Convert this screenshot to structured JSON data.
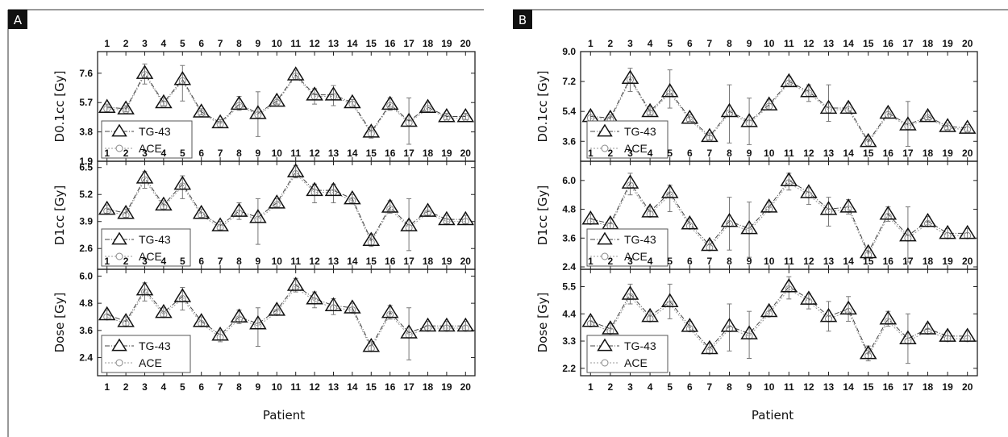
{
  "figure": {
    "panels": [
      {
        "label": "A",
        "xlabel": "Patient"
      },
      {
        "label": "B",
        "xlabel": "Patient"
      }
    ]
  },
  "chart_data": [
    {
      "type": "line",
      "panel": "A",
      "ylabel": "D0.1cc [Gy]",
      "xlabel": "",
      "categories": [
        "1",
        "2",
        "3",
        "4",
        "5",
        "6",
        "7",
        "8",
        "9",
        "10",
        "11",
        "12",
        "13",
        "14",
        "15",
        "16",
        "17",
        "18",
        "19",
        "20"
      ],
      "yticks": [
        1.9,
        3.8,
        5.7,
        7.6
      ],
      "ylim": [
        1.9,
        9.0
      ],
      "legend_position": "bottom-left",
      "series": [
        {
          "name": "TG-43",
          "marker": "triangle",
          "values": [
            5.4,
            5.3,
            7.6,
            5.7,
            7.2,
            5.1,
            4.4,
            5.6,
            5.0,
            5.8,
            7.5,
            6.2,
            6.2,
            5.7,
            3.8,
            5.6,
            4.5,
            5.4,
            4.8,
            4.8
          ],
          "err_low": [
            5.1,
            5.1,
            6.9,
            5.5,
            5.8,
            4.9,
            4.1,
            5.2,
            3.5,
            5.6,
            7.2,
            5.6,
            5.5,
            5.4,
            3.4,
            5.2,
            3.0,
            5.1,
            4.6,
            4.6
          ],
          "err_high": [
            5.6,
            5.5,
            8.2,
            6.0,
            8.1,
            5.3,
            4.6,
            6.1,
            6.4,
            6.0,
            7.8,
            6.6,
            6.8,
            5.9,
            4.1,
            6.0,
            6.0,
            5.7,
            5.0,
            5.0
          ]
        },
        {
          "name": "ACE",
          "marker": "circle",
          "values": [
            5.3,
            5.2,
            7.5,
            5.6,
            7.1,
            5.0,
            4.3,
            5.5,
            4.9,
            5.7,
            7.4,
            6.1,
            6.1,
            5.6,
            3.7,
            5.5,
            4.4,
            5.3,
            4.7,
            4.7
          ]
        }
      ]
    },
    {
      "type": "line",
      "panel": "A",
      "ylabel": "D1cc [Gy]",
      "xlabel": "",
      "categories": [
        "1",
        "2",
        "3",
        "4",
        "5",
        "6",
        "7",
        "8",
        "9",
        "10",
        "11",
        "12",
        "13",
        "14",
        "15",
        "16",
        "17",
        "18",
        "19",
        "20"
      ],
      "yticks": [
        2.6,
        3.9,
        5.2,
        6.5
      ],
      "ylim": [
        1.6,
        6.8
      ],
      "legend_position": "bottom-left",
      "series": [
        {
          "name": "TG-43",
          "marker": "triangle",
          "values": [
            4.5,
            4.3,
            6.0,
            4.7,
            5.7,
            4.3,
            3.7,
            4.4,
            4.1,
            4.8,
            6.3,
            5.4,
            5.4,
            5.0,
            3.0,
            4.6,
            3.7,
            4.4,
            4.0,
            4.0
          ],
          "err_low": [
            4.3,
            4.1,
            5.5,
            4.5,
            5.0,
            4.1,
            3.5,
            4.0,
            2.8,
            4.6,
            6.0,
            4.8,
            4.8,
            4.8,
            2.7,
            4.3,
            2.5,
            4.2,
            3.8,
            3.8
          ],
          "err_high": [
            4.7,
            4.5,
            6.3,
            4.9,
            6.1,
            4.5,
            3.9,
            4.8,
            5.0,
            5.0,
            6.6,
            5.7,
            5.7,
            5.2,
            3.3,
            4.9,
            5.0,
            4.6,
            4.2,
            4.2
          ]
        },
        {
          "name": "ACE",
          "marker": "circle",
          "values": [
            4.4,
            4.2,
            5.9,
            4.6,
            5.6,
            4.2,
            3.6,
            4.3,
            4.0,
            4.7,
            6.2,
            5.3,
            5.3,
            4.9,
            2.9,
            4.5,
            3.6,
            4.3,
            3.9,
            3.9
          ]
        }
      ]
    },
    {
      "type": "line",
      "panel": "A",
      "ylabel": "Dose [Gy]",
      "xlabel": "Patient",
      "categories": [
        "1",
        "2",
        "3",
        "4",
        "5",
        "6",
        "7",
        "8",
        "9",
        "10",
        "11",
        "12",
        "13",
        "14",
        "15",
        "16",
        "17",
        "18",
        "19",
        "20"
      ],
      "yticks": [
        2.4,
        3.6,
        4.8,
        6.0
      ],
      "ylim": [
        1.6,
        6.3
      ],
      "legend_position": "bottom-left",
      "series": [
        {
          "name": "TG-43",
          "marker": "triangle",
          "values": [
            4.3,
            4.0,
            5.4,
            4.4,
            5.1,
            4.0,
            3.4,
            4.2,
            3.9,
            4.5,
            5.6,
            5.0,
            4.7,
            4.6,
            2.9,
            4.4,
            3.5,
            3.8,
            3.8,
            3.8
          ],
          "err_low": [
            4.1,
            3.8,
            4.9,
            4.2,
            4.5,
            3.8,
            3.1,
            3.9,
            2.9,
            4.3,
            5.3,
            4.6,
            4.3,
            4.4,
            2.7,
            4.1,
            2.3,
            3.6,
            3.6,
            3.6
          ],
          "err_high": [
            4.5,
            4.2,
            5.7,
            4.6,
            5.5,
            4.2,
            3.6,
            4.5,
            4.6,
            4.7,
            5.9,
            5.3,
            5.0,
            4.8,
            3.1,
            4.7,
            4.6,
            4.0,
            4.0,
            4.0
          ]
        },
        {
          "name": "ACE",
          "marker": "circle",
          "values": [
            4.2,
            3.9,
            5.3,
            4.3,
            5.0,
            3.9,
            3.3,
            4.1,
            3.8,
            4.4,
            5.5,
            4.9,
            4.6,
            4.5,
            2.8,
            4.3,
            3.4,
            3.7,
            3.7,
            3.7
          ]
        }
      ]
    },
    {
      "type": "line",
      "panel": "B",
      "ylabel": "D0.1cc [Gy]",
      "xlabel": "",
      "categories": [
        "1",
        "2",
        "3",
        "4",
        "5",
        "6",
        "7",
        "8",
        "9",
        "10",
        "11",
        "12",
        "13",
        "14",
        "15",
        "16",
        "17",
        "18",
        "19",
        "20"
      ],
      "yticks": [
        3.6,
        5.4,
        7.2,
        9.0
      ],
      "ylim": [
        2.4,
        9.0
      ],
      "legend_position": "bottom-right",
      "series": [
        {
          "name": "TG-43",
          "marker": "triangle",
          "values": [
            5.1,
            5.0,
            7.4,
            5.4,
            6.6,
            5.0,
            3.9,
            5.4,
            4.8,
            5.8,
            7.2,
            6.6,
            5.6,
            5.6,
            3.6,
            5.3,
            4.6,
            5.1,
            4.5,
            4.4
          ],
          "err_low": [
            4.8,
            4.8,
            6.6,
            5.2,
            5.6,
            4.8,
            3.7,
            3.5,
            3.4,
            5.5,
            6.9,
            6.0,
            4.8,
            5.3,
            3.3,
            5.0,
            3.3,
            4.9,
            4.3,
            4.2
          ],
          "err_high": [
            5.4,
            5.2,
            8.0,
            5.7,
            7.9,
            5.2,
            4.1,
            7.0,
            6.2,
            6.1,
            7.5,
            7.0,
            7.0,
            5.9,
            3.9,
            5.6,
            6.0,
            5.4,
            4.7,
            4.6
          ]
        },
        {
          "name": "ACE",
          "marker": "circle",
          "values": [
            5.0,
            4.9,
            7.3,
            5.3,
            6.5,
            4.9,
            3.8,
            5.3,
            4.7,
            5.7,
            7.1,
            6.5,
            5.5,
            5.5,
            3.5,
            5.2,
            4.5,
            5.0,
            4.4,
            4.3
          ]
        }
      ]
    },
    {
      "type": "line",
      "panel": "B",
      "ylabel": "D1cc [Gy]",
      "xlabel": "",
      "categories": [
        "1",
        "2",
        "3",
        "4",
        "5",
        "6",
        "7",
        "8",
        "9",
        "10",
        "11",
        "12",
        "13",
        "14",
        "15",
        "16",
        "17",
        "18",
        "19",
        "20"
      ],
      "yticks": [
        2.4,
        3.6,
        4.8,
        6.0
      ],
      "ylim": [
        2.3,
        6.8
      ],
      "legend_position": "bottom-left",
      "series": [
        {
          "name": "TG-43",
          "marker": "triangle",
          "values": [
            4.4,
            4.2,
            5.9,
            4.7,
            5.5,
            4.2,
            3.3,
            4.3,
            4.0,
            4.9,
            6.0,
            5.5,
            4.8,
            4.9,
            3.0,
            4.6,
            3.7,
            4.3,
            3.8,
            3.8
          ],
          "err_low": [
            4.2,
            4.0,
            5.4,
            4.5,
            4.7,
            4.0,
            3.1,
            3.1,
            2.8,
            4.7,
            5.6,
            5.0,
            4.1,
            4.6,
            2.8,
            4.3,
            2.6,
            4.1,
            3.6,
            3.6
          ],
          "err_high": [
            4.6,
            4.4,
            6.3,
            4.9,
            5.8,
            4.4,
            3.5,
            5.3,
            5.1,
            5.1,
            6.3,
            5.7,
            5.3,
            5.2,
            3.2,
            4.9,
            4.9,
            4.5,
            4.0,
            4.0
          ]
        },
        {
          "name": "ACE",
          "marker": "circle",
          "values": [
            4.3,
            4.1,
            5.8,
            4.6,
            5.4,
            4.1,
            3.2,
            4.2,
            3.9,
            4.8,
            5.9,
            5.4,
            4.7,
            4.8,
            2.9,
            4.5,
            3.6,
            4.2,
            3.7,
            3.7
          ]
        }
      ]
    },
    {
      "type": "line",
      "panel": "B",
      "ylabel": "Dose [Gy]",
      "xlabel": "Patient",
      "categories": [
        "1",
        "2",
        "3",
        "4",
        "5",
        "6",
        "7",
        "8",
        "9",
        "10",
        "11",
        "12",
        "13",
        "14",
        "15",
        "16",
        "17",
        "18",
        "19",
        "20"
      ],
      "yticks": [
        2.2,
        3.3,
        4.4,
        5.5
      ],
      "ylim": [
        1.9,
        6.2
      ],
      "legend_position": "bottom-left",
      "series": [
        {
          "name": "TG-43",
          "marker": "triangle",
          "values": [
            4.1,
            3.8,
            5.2,
            4.3,
            4.9,
            3.9,
            3.0,
            3.9,
            3.6,
            4.5,
            5.5,
            5.0,
            4.3,
            4.6,
            2.8,
            4.2,
            3.4,
            3.8,
            3.5,
            3.5
          ],
          "err_low": [
            3.9,
            3.6,
            4.8,
            4.1,
            4.2,
            3.7,
            2.8,
            2.9,
            2.6,
            4.3,
            5.0,
            4.6,
            3.7,
            4.1,
            2.5,
            3.9,
            2.4,
            3.6,
            3.3,
            3.3
          ],
          "err_high": [
            4.3,
            4.0,
            5.6,
            4.5,
            5.6,
            4.1,
            3.2,
            4.8,
            4.5,
            4.7,
            5.9,
            5.2,
            4.9,
            5.1,
            3.1,
            4.5,
            4.4,
            4.0,
            3.7,
            3.7
          ]
        },
        {
          "name": "ACE",
          "marker": "circle",
          "values": [
            4.0,
            3.7,
            5.1,
            4.2,
            4.8,
            3.8,
            2.9,
            3.8,
            3.5,
            4.4,
            5.4,
            4.9,
            4.2,
            4.5,
            2.7,
            4.1,
            3.3,
            3.7,
            3.4,
            3.4
          ]
        }
      ]
    }
  ]
}
